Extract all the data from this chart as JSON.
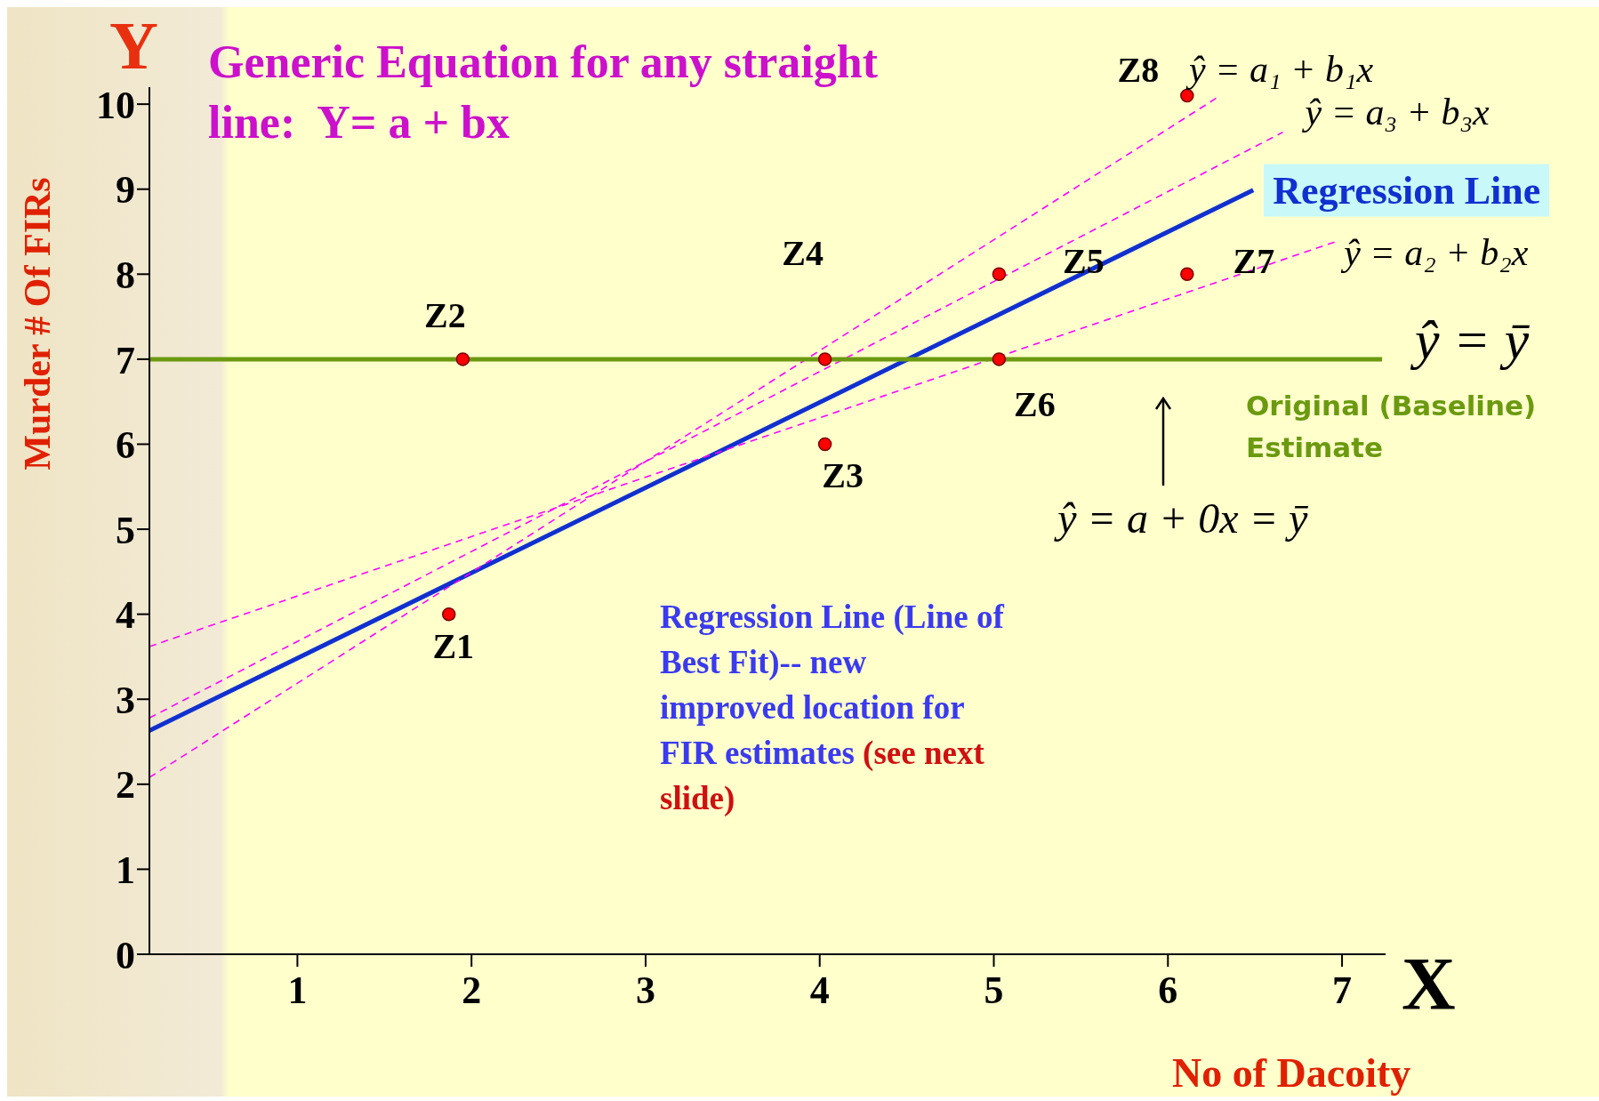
{
  "chart_data": {
    "type": "scatter",
    "title": "Generic Equation for any straight line:  Y= a + bx",
    "xlabel": "No of Dacoity",
    "ylabel": "Murder # Of FIRs",
    "xlim": [
      0.15,
      7.25
    ],
    "ylim": [
      0,
      10.2
    ],
    "xticks": [
      1,
      2,
      3,
      4,
      5,
      6,
      7
    ],
    "yticks": [
      0,
      1,
      2,
      3,
      4,
      5,
      6,
      7,
      8,
      9,
      10
    ],
    "marker": "circle",
    "series": [
      {
        "color": "#ff0000",
        "x": [
          1.87,
          1.95,
          4.03,
          4.03,
          5.03,
          5.03,
          6.11,
          6.11
        ],
        "values": [
          4.0,
          7.0,
          6.0,
          7.0,
          8.0,
          7.0,
          8.0,
          10.1
        ]
      },
      {
        "type": "line",
        "name": "Regression Line",
        "color": "#1030d0",
        "line_style": "solid",
        "marker": "none",
        "x": [
          0.15,
          6.49
        ],
        "values": [
          2.63,
          8.99
        ]
      },
      {
        "type": "line",
        "name": "ŷ = a₁ + b₁x",
        "color": "#ff00ff",
        "line_style": "dashed",
        "marker": "none",
        "x": [
          0.15,
          6.3
        ],
        "values": [
          2.08,
          10.1
        ]
      },
      {
        "type": "line",
        "name": "ŷ = a₃ + b₃x",
        "color": "#ff00ff",
        "line_style": "dashed",
        "marker": "none",
        "x": [
          0.15,
          6.66
        ],
        "values": [
          2.78,
          9.67
        ]
      },
      {
        "type": "line",
        "name": "ŷ = a₂ + b₂x",
        "color": "#ff00ff",
        "line_style": "dashed",
        "marker": "none",
        "x": [
          0.15,
          6.96
        ],
        "values": [
          3.62,
          8.38
        ]
      },
      {
        "type": "line",
        "name": "ŷ = ȳ",
        "color": "#6b9a10",
        "line_style": "solid",
        "marker": "none",
        "x": [
          0.15,
          7.23
        ],
        "values": [
          7,
          7
        ]
      }
    ],
    "annotations": [
      {
        "text": "Z1",
        "x": 1.87,
        "y": 4.0
      },
      {
        "text": "Z2",
        "x": 1.95,
        "y": 7.0
      },
      {
        "text": "Z3",
        "x": 4.03,
        "y": 6.0
      },
      {
        "text": "Z4",
        "x": 4.03,
        "y": 7.0
      },
      {
        "text": "Z5",
        "x": 5.03,
        "y": 8.0
      },
      {
        "text": "Z6",
        "x": 5.03,
        "y": 7.0
      },
      {
        "text": "Z7",
        "x": 6.11,
        "y": 8.0
      },
      {
        "text": "Z8",
        "x": 6.11,
        "y": 10.1
      },
      "Y",
      "X",
      "Original (Baseline) Estimate",
      "ŷ = a + 0x = ȳ",
      "Regression Line (Line of  Best Fit)-- new improved location for FIR estimates",
      "(see next slide)"
    ]
  }
}
